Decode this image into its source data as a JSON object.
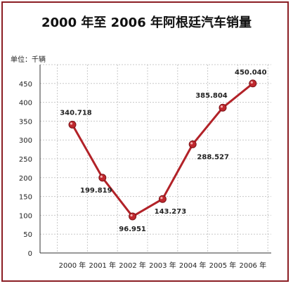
{
  "chart_data": {
    "type": "line",
    "title": "2000 年至 2006 年阿根廷汽车销量",
    "unit_label": "单位：千辆",
    "categories": [
      "2000 年",
      "2001 年",
      "2002 年",
      "2003 年",
      "2004 年",
      "2005 年",
      "2006 年"
    ],
    "series": [
      {
        "values": [
          340.718,
          199.819,
          96.951,
          143.273,
          288.527,
          385.804,
          450.04
        ],
        "value_labels": [
          "340.718",
          "199.819",
          "96.951",
          "143.273",
          "288.527",
          "385.804",
          "450.040"
        ]
      }
    ],
    "ylim": [
      0,
      500
    ],
    "yticks": [
      0,
      50,
      100,
      150,
      200,
      250,
      300,
      350,
      400,
      450
    ],
    "grid": true,
    "colors": {
      "line": "#b22228",
      "marker": "#c0282e",
      "border": "#8b1e24",
      "grid": "#c8c8c8"
    }
  }
}
